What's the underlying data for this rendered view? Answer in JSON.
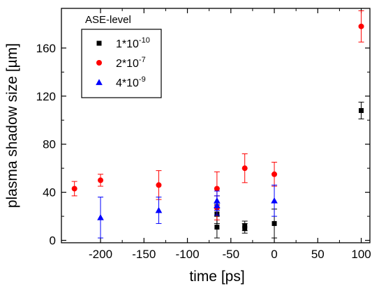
{
  "chart_data": {
    "type": "scatter",
    "xlabel": "time [ps]",
    "ylabel": "plasma shadow size [µm]",
    "xlim": [
      -245,
      110
    ],
    "ylim": [
      -2,
      193
    ],
    "x_ticks": [
      -200,
      -150,
      -100,
      -50,
      0,
      50,
      100
    ],
    "y_ticks": [
      0,
      40,
      80,
      120,
      160
    ],
    "legend": {
      "title": "ASE-level",
      "position": "top-left",
      "entries": [
        {
          "base": "1*10",
          "exp": "-10",
          "marker": "square",
          "color": "#000000"
        },
        {
          "base": "2*10",
          "exp": "-7",
          "marker": "circle",
          "color": "#ff0000"
        },
        {
          "base": "4*10",
          "exp": "-9",
          "marker": "triangle",
          "color": "#0000ff"
        }
      ]
    },
    "series": [
      {
        "marker": "square",
        "color": "#000000",
        "points": [
          {
            "x": -66,
            "y": 22,
            "err": 8
          },
          {
            "x": -66,
            "y": 11,
            "err": 9
          },
          {
            "x": -34,
            "y": 12,
            "err": 4
          },
          {
            "x": -34,
            "y": 10,
            "err": 4
          },
          {
            "x": 0,
            "y": 14,
            "err": 12
          },
          {
            "x": 100,
            "y": 108,
            "err": 7
          }
        ]
      },
      {
        "marker": "circle",
        "color": "#ff0000",
        "points": [
          {
            "x": -230,
            "y": 43,
            "err": 6
          },
          {
            "x": -200,
            "y": 50,
            "err": 5
          },
          {
            "x": -133,
            "y": 46,
            "err": 12
          },
          {
            "x": -66,
            "y": 43,
            "err": 14
          },
          {
            "x": -66,
            "y": 27,
            "err": 10
          },
          {
            "x": -34,
            "y": 60,
            "err": 12
          },
          {
            "x": 0,
            "y": 55,
            "err": 10
          },
          {
            "x": 100,
            "y": 178,
            "err": 13
          }
        ]
      },
      {
        "marker": "triangle",
        "color": "#0000ff",
        "points": [
          {
            "x": -200,
            "y": 19,
            "err": 17
          },
          {
            "x": -133,
            "y": 25,
            "err": 11
          },
          {
            "x": -66,
            "y": 33,
            "err": 8
          },
          {
            "x": -66,
            "y": 29,
            "err": 8
          },
          {
            "x": 0,
            "y": 33,
            "err": 13
          }
        ]
      }
    ]
  }
}
